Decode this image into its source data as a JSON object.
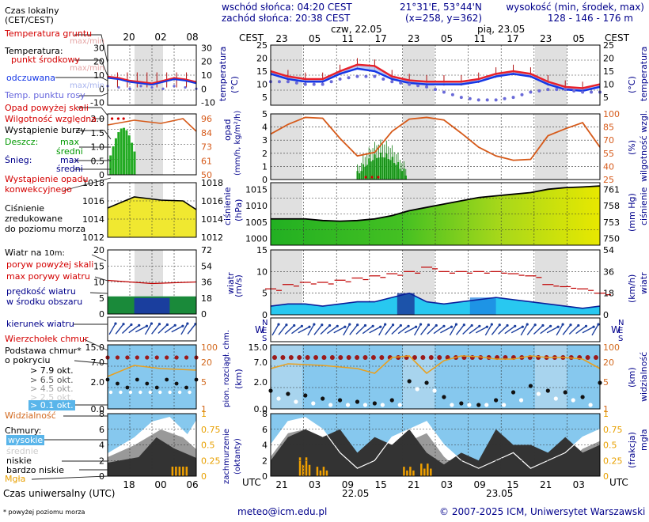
{
  "header": {
    "sunrise": "wschód słońca: 04:20 CEST",
    "sunset": "zachód słońca: 20:38 CEST",
    "coords": "21°31'E, 53°44'N",
    "grid": "(x=258, y=362)",
    "altitude_title": "wysokość (min, środek, max)",
    "altitude_values": "128 - 146 - 176 m"
  },
  "legend": {
    "time_local": "Czas lokalny",
    "time_local_sub": "(CET/CEST)",
    "local_ticks": [
      "20",
      "02",
      "08"
    ],
    "ground_temp": "Temperatura gruntu",
    "ground_minmax": "max/min",
    "temperature": "Temperatura:",
    "midpoint": "punkt środkowy",
    "maxmin": "max/min",
    "perceived": "odczuwana",
    "perceived_maxmin": "max/min",
    "dewpoint": "Temp. punktu rosy",
    "temp_left_ticks": [
      "30",
      "20",
      "10",
      "0",
      "-10"
    ],
    "temp_right_ticks": [
      "30",
      "20",
      "10",
      "0",
      "-10"
    ],
    "precip_above": "Opad powyżej skali",
    "humidity": "Wilgotność względna",
    "storm": "Wystąpienie burzy",
    "rain": "Deszcz:",
    "rain_max": "max",
    "rain_mean": "średni",
    "snow": "Śnieg:",
    "snow_max": "max",
    "snow_mean": "średni",
    "convective": "Wystąpienie opadu",
    "convective2": "konwekcyjnego",
    "precip_left_ticks": [
      "2.0",
      "1.5",
      "1.0",
      "0.5",
      "0"
    ],
    "humidity_ticks": [
      "96",
      "84",
      "73",
      "61",
      "50"
    ],
    "pressure_title": "Ciśnienie",
    "pressure_sub1": "zredukowane",
    "pressure_sub2": "do poziomu morza",
    "pressure_ticks": [
      "1018",
      "1016",
      "1014",
      "1012"
    ],
    "wind_title": "Wiatr na",
    "wind_title_h": "10m:",
    "gust_above": "poryw powyżej skali",
    "gust_max": "max porywy wiatru",
    "wind_mean": "prędkość wiatru",
    "wind_mean2": "w środku obszaru",
    "wind_left_ticks": [
      "20",
      "15",
      "10",
      "5",
      "0"
    ],
    "wind_right_ticks": [
      "72",
      "54",
      "36",
      "18",
      "0"
    ],
    "wind_dir": "kierunek wiatru",
    "cloud_top": "Wierzchołek chmur",
    "cloud_base": "Podstawa chmur*",
    "cloud_cover": "o pokryciu",
    "okt79": "> 7.9 okt.",
    "okt65": "> 6.5 okt.",
    "okt45": "> 4.5 okt.",
    "okt25": "> 2.5 okt.",
    "okt01": "> 0.1 okt.",
    "visibility": "Widzialność",
    "cloud_left_ticks": [
      "15.0",
      "7.0",
      "2.0",
      "0.0"
    ],
    "cloud_right_ticks": [
      "100",
      "20",
      "5",
      "1"
    ],
    "clouds": "Chmury:",
    "high": "wysokie",
    "medium": "średnie",
    "low": "niskie",
    "very_low": "bardzo niskie",
    "fog": "Mgła",
    "cc_left_ticks": [
      "8",
      "6",
      "4",
      "2",
      "0"
    ],
    "cc_right_ticks": [
      "1",
      "0.75",
      "0.5",
      "0.25",
      "0"
    ],
    "utc_ticks": [
      "18",
      "00",
      "06"
    ],
    "utc_label": "Czas uniwersalny (UTC)",
    "footnote": "* powyżej poziomu morza"
  },
  "main": {
    "cest_label": "CEST",
    "utc_label": "UTC",
    "day1": "czw, 22.05",
    "day2": "pią, 23.05",
    "cest_ticks": [
      "23",
      "05",
      "11",
      "17",
      "23",
      "05",
      "11",
      "17",
      "23",
      "05"
    ],
    "utc_ticks": [
      "21",
      "03",
      "09",
      "15",
      "21",
      "03",
      "09",
      "15",
      "21",
      "03"
    ],
    "date1": "22.05",
    "date2": "23.05"
  },
  "panels": {
    "temp": {
      "title": "temperatura",
      "unit": "(°C)",
      "left_ticks": [
        "25",
        "20",
        "15",
        "10",
        "5"
      ],
      "right_ticks": [
        "25",
        "20",
        "15",
        "10",
        "5"
      ],
      "colors": {
        "mid": "#e8202a",
        "perceived": "#1436e6",
        "dewpoint": "#6666dd"
      }
    },
    "precip": {
      "title": "opad",
      "unit": "(mm/h, kg/m²/h)",
      "right_title": "wilgotność wzgl.",
      "right_unit": "(%)",
      "left_ticks": [
        "5",
        "4",
        "3",
        "2",
        "1",
        "0"
      ],
      "right_ticks": [
        "100",
        "85",
        "70",
        "55",
        "40",
        "25"
      ]
    },
    "pressure": {
      "title": "ciśnienie",
      "unit": "(hPa)",
      "right_title": "ciśnienie",
      "right_unit": "(mm Hg)",
      "left_ticks": [
        "1015",
        "1010",
        "1005",
        "1000"
      ],
      "right_ticks": [
        "761",
        "758",
        "753",
        "750"
      ]
    },
    "wind": {
      "title": "wiatr",
      "unit": "(m/s)",
      "right_title": "wiatr",
      "right_unit": "(km/h)",
      "left_ticks": [
        "15",
        "10",
        "5",
        "0"
      ],
      "right_ticks": [
        "54",
        "36",
        "18",
        "0"
      ]
    },
    "winddir": {
      "left_label": "WSEN",
      "right_label": "WSEN"
    },
    "cloud": {
      "title": "pion. rozciągł. chm.",
      "unit": "(km)",
      "right_title": "widzialność",
      "right_unit": "(km)",
      "left_ticks": [
        "15.0",
        "7.0",
        "2.0",
        "0.0"
      ],
      "right_ticks": [
        "100",
        "20",
        "5",
        "1"
      ]
    },
    "cover": {
      "title": "zachmurzenie",
      "unit": "(oktanty)",
      "right_title": "mgła",
      "right_unit": "(frakcja)",
      "left_ticks": [
        "8",
        "6",
        "4",
        "2",
        "0"
      ],
      "right_ticks": [
        "1",
        "0.75",
        "0.5",
        "0.25",
        "0"
      ]
    }
  },
  "chart_data": [
    {
      "type": "line",
      "title": "temperatura",
      "ylabel": "(°C)",
      "ylim": [
        2,
        25
      ],
      "x": [
        "21",
        "00",
        "03",
        "06",
        "09",
        "12",
        "15",
        "18",
        "21",
        "00",
        "03",
        "06",
        "09",
        "12",
        "15",
        "18",
        "21",
        "00",
        "03",
        "06"
      ],
      "series": [
        {
          "name": "punkt środkowy",
          "values": [
            15,
            13,
            12,
            12,
            15,
            17.5,
            17,
            13,
            11.5,
            11,
            11,
            11,
            12,
            14,
            15,
            14,
            11,
            9,
            8.5,
            10
          ]
        },
        {
          "name": "odczuwana",
          "values": [
            14,
            12,
            11,
            11,
            14,
            16,
            15,
            12,
            10.5,
            10,
            10,
            10,
            11,
            13,
            14,
            13,
            10,
            8,
            7.5,
            9
          ]
        },
        {
          "name": "Temp. punktu rosy",
          "values": [
            11,
            11,
            10,
            10,
            12,
            13,
            13,
            11,
            10,
            9,
            7,
            5,
            4,
            4,
            5,
            7,
            8,
            8,
            7,
            7
          ]
        }
      ]
    },
    {
      "type": "bar",
      "title": "opad",
      "ylabel": "(mm/h, kg/m²/h)",
      "ylim": [
        0,
        5
      ],
      "x": [
        "12",
        "15",
        "18",
        "21"
      ],
      "series": [
        {
          "name": "średni",
          "values": [
            0.3,
            0.8,
            0.4,
            0.1
          ]
        },
        {
          "name": "max",
          "values": [
            1.1,
            1.9,
            1.7,
            0.5
          ]
        }
      ]
    },
    {
      "type": "line",
      "title": "wilgotność wzgl.",
      "ylabel": "(%)",
      "ylim": [
        25,
        100
      ],
      "x": [
        "21",
        "00",
        "03",
        "06",
        "09",
        "12",
        "15",
        "18",
        "21",
        "00",
        "03",
        "06",
        "09",
        "12",
        "15",
        "18",
        "21",
        "00",
        "03",
        "06"
      ],
      "series": [
        {
          "name": "Wilgotność względna",
          "values": [
            77,
            88,
            96,
            95,
            72,
            52,
            56,
            80,
            94,
            96,
            93,
            78,
            62,
            52,
            47,
            48,
            75,
            83,
            90,
            62
          ]
        }
      ]
    },
    {
      "type": "area",
      "title": "ciśnienie",
      "ylabel": "(hPa)",
      "ylim": [
        998,
        1017
      ],
      "x": [
        "21",
        "00",
        "03",
        "06",
        "09",
        "12",
        "15",
        "18",
        "21",
        "00",
        "03",
        "06",
        "09",
        "12",
        "15",
        "18",
        "21",
        "00",
        "03",
        "06"
      ],
      "series": [
        {
          "name": "Ciśnienie",
          "values": [
            1006,
            1006,
            1006,
            1005.5,
            1005.3,
            1005.5,
            1006,
            1007,
            1008.5,
            1009.5,
            1010.5,
            1011.5,
            1012.5,
            1013,
            1013.5,
            1014,
            1015,
            1015.5,
            1015.7,
            1016
          ]
        }
      ]
    },
    {
      "type": "area",
      "title": "wiatr",
      "ylabel": "(m/s)",
      "ylim": [
        0,
        15
      ],
      "x": [
        "21",
        "00",
        "03",
        "06",
        "09",
        "12",
        "15",
        "18",
        "21",
        "00",
        "03",
        "06",
        "09",
        "12",
        "15",
        "18",
        "21",
        "00",
        "03",
        "06"
      ],
      "series": [
        {
          "name": "prędkość wiatru",
          "values": [
            2,
            2.5,
            2.5,
            2,
            2.5,
            3,
            3,
            4,
            5,
            3,
            2.5,
            3,
            3.5,
            4,
            3.5,
            3,
            2.5,
            2,
            1.5,
            2
          ]
        },
        {
          "name": "max porywy wiatru",
          "values": [
            6,
            7,
            7.5,
            7.5,
            8,
            8.5,
            9,
            9.5,
            10,
            11,
            10,
            10,
            10,
            10,
            9.5,
            9,
            7,
            6.5,
            6,
            5
          ]
        }
      ]
    },
    {
      "type": "area",
      "title": "zachmurzenie",
      "ylabel": "(oktanty)",
      "ylim": [
        0,
        8
      ],
      "x": [
        "21",
        "00",
        "03",
        "06",
        "09",
        "12",
        "15",
        "18",
        "21",
        "00",
        "03",
        "06",
        "09",
        "12",
        "15",
        "18",
        "21",
        "00",
        "03",
        "06"
      ],
      "series": [
        {
          "name": "wysokie",
          "values": [
            4,
            7,
            7.5,
            6,
            3,
            1,
            2,
            5,
            6,
            7,
            4,
            2,
            1,
            2,
            3,
            1,
            2,
            3,
            5,
            6
          ]
        },
        {
          "name": "niskie",
          "values": [
            2,
            5,
            6,
            5,
            6,
            3,
            5,
            4,
            6,
            3,
            1.5,
            3,
            2,
            6,
            4,
            4,
            3,
            5,
            3,
            4
          ]
        },
        {
          "name": "Mgła",
          "values": [
            0,
            0,
            0.3,
            0.15,
            0,
            0,
            0,
            0,
            0.15,
            0.2,
            0,
            0,
            0,
            0,
            0,
            0,
            0,
            0,
            0,
            0
          ]
        }
      ]
    }
  ]
}
